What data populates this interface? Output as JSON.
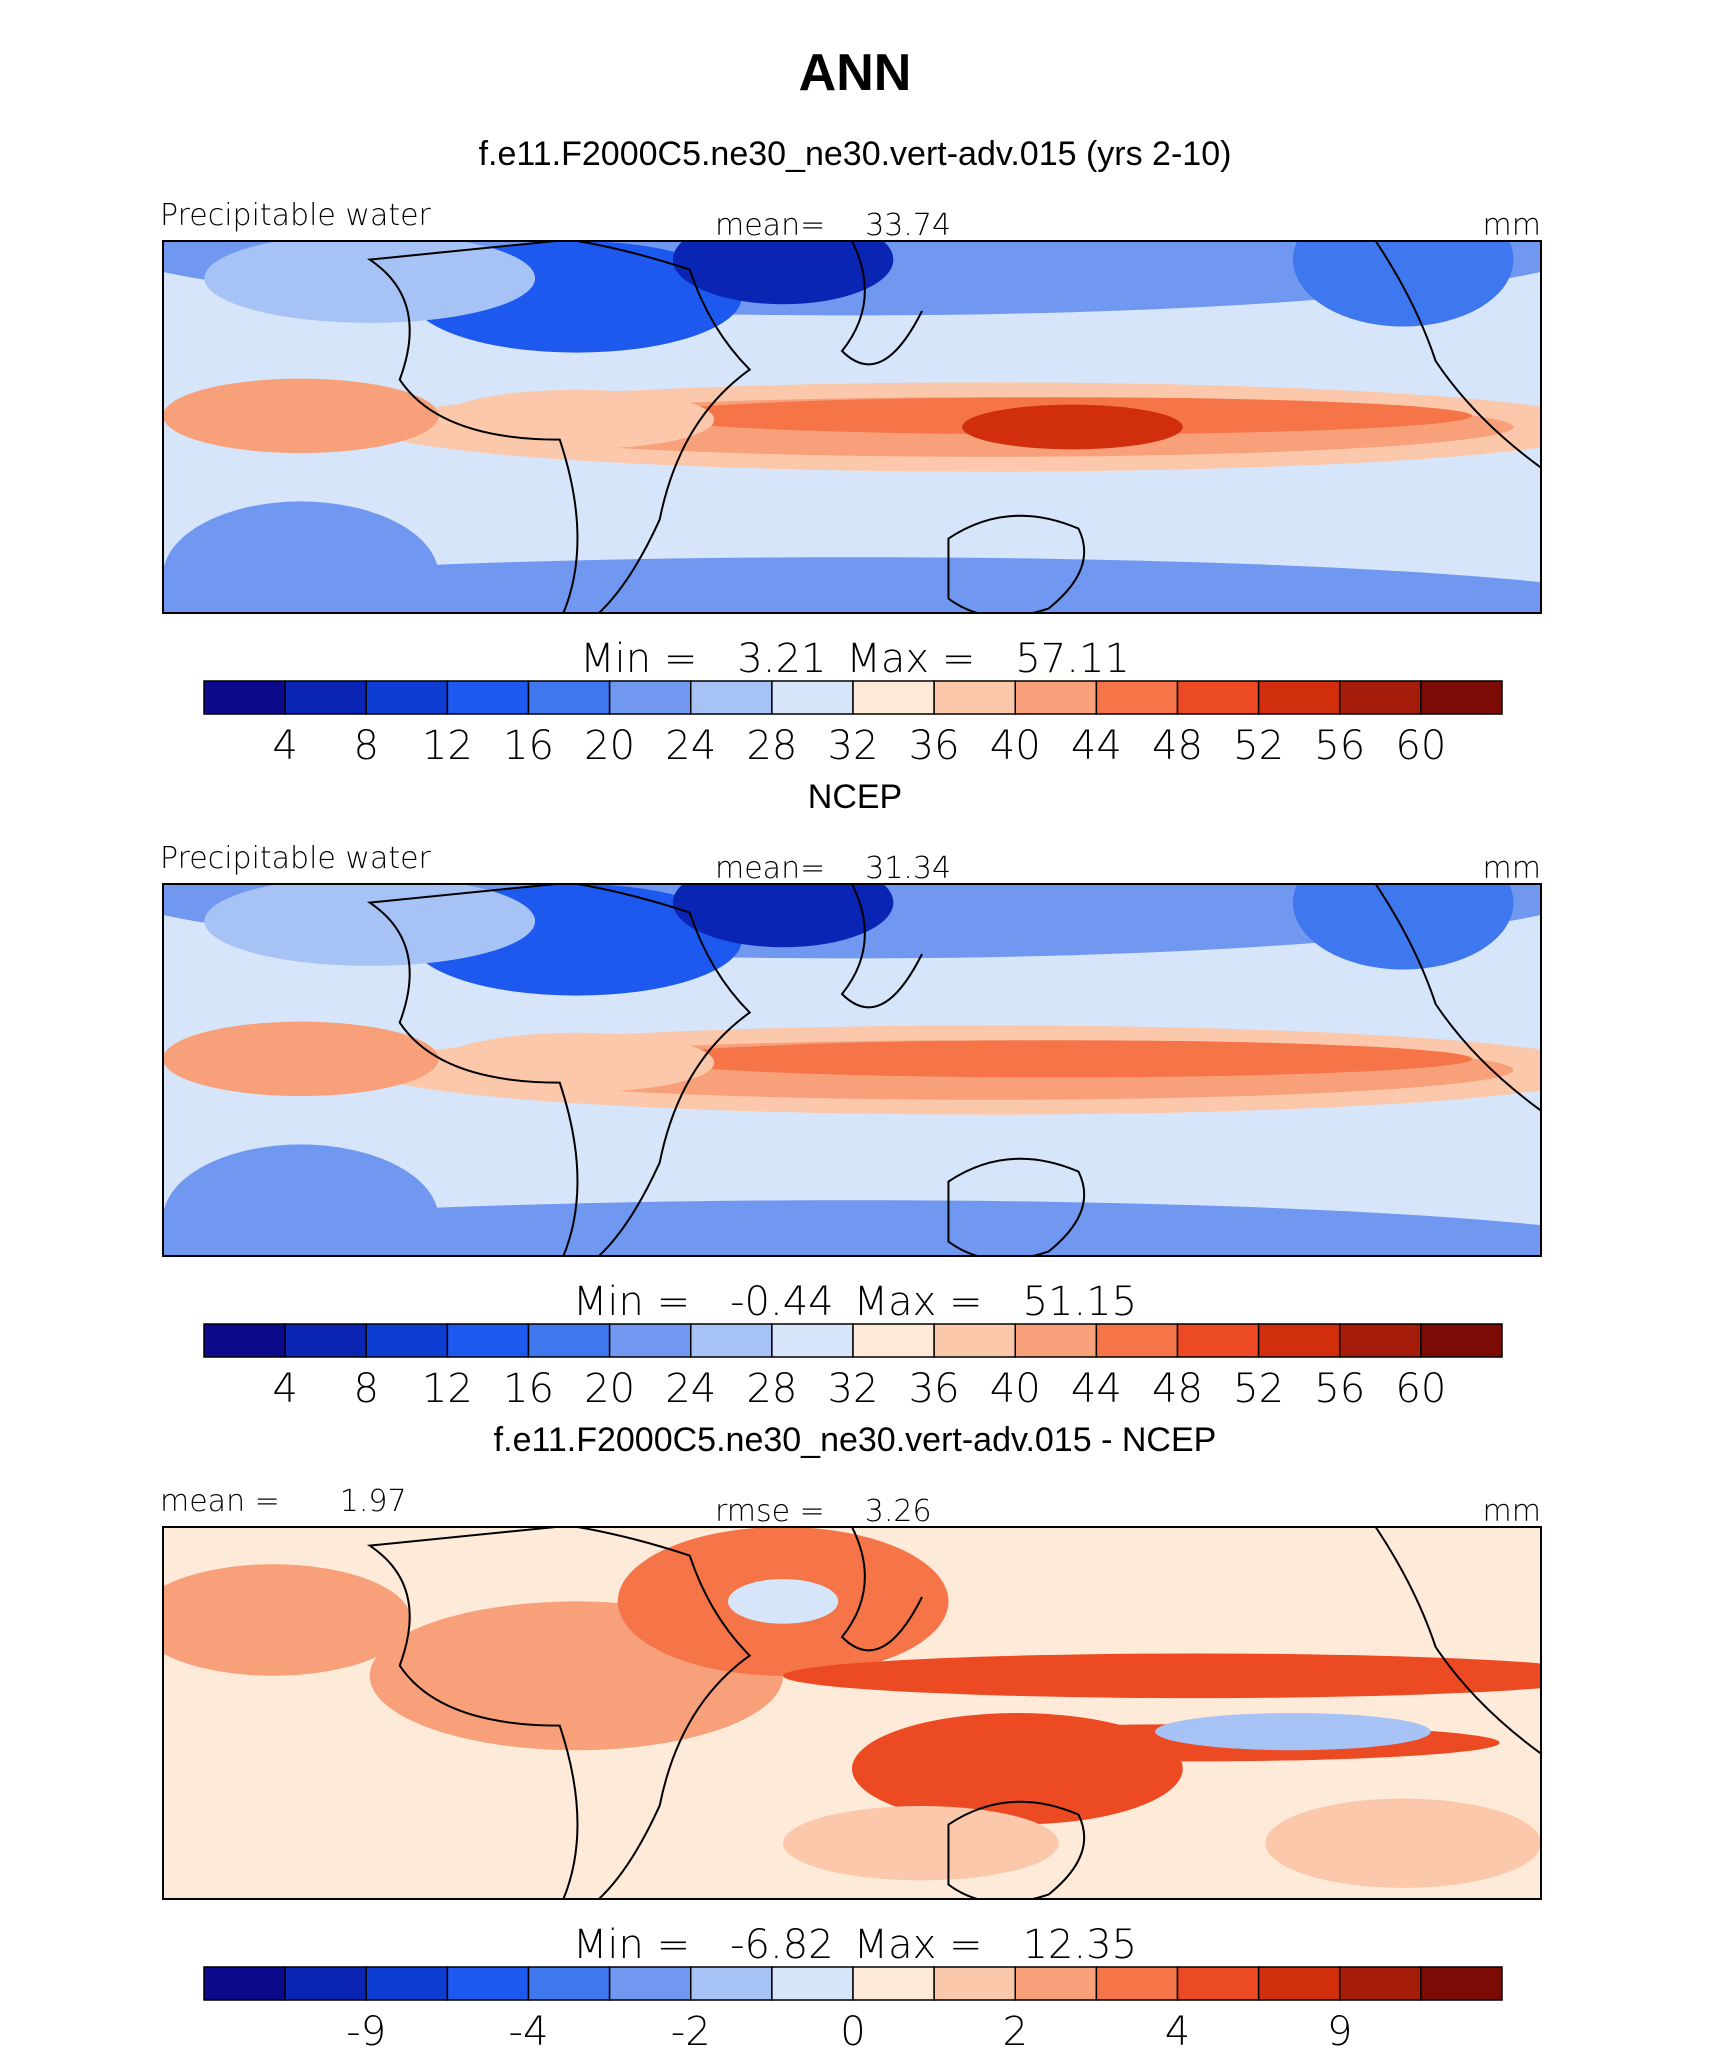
{
  "title": "ANN",
  "colormap": [
    "#0b0a8c",
    "#0a24b3",
    "#0d3dd3",
    "#1d58ef",
    "#3f77ee",
    "#7098f0",
    "#a7c3f5",
    "#d6e5f9",
    "#fdead9",
    "#fbc8ab",
    "#f8a07a",
    "#f57448",
    "#ec4a22",
    "#d12e0e",
    "#a61c0a",
    "#7c0a05"
  ],
  "panels": [
    {
      "title": "f.e11.F2000C5.ne30_ne30.vert-adv.015 (yrs 2-10)",
      "left_label": "Precipitable water",
      "center_label": "mean=",
      "center_value": 33.74,
      "units": "mm",
      "min_label": "Min =",
      "min": 3.21,
      "max_label": "Max =",
      "max": 57.11,
      "colorbar_labels": [
        4,
        8,
        12,
        16,
        20,
        24,
        28,
        32,
        36,
        40,
        44,
        48,
        52,
        56,
        60
      ]
    },
    {
      "title": "NCEP",
      "left_label": "Precipitable water",
      "center_label": "mean=",
      "center_value": 31.34,
      "units": "mm",
      "min_label": "Min =",
      "min": -0.44,
      "max_label": "Max =",
      "max": 51.15,
      "colorbar_labels": [
        4,
        8,
        12,
        16,
        20,
        24,
        28,
        32,
        36,
        40,
        44,
        48,
        52,
        56,
        60
      ]
    },
    {
      "title": "f.e11.F2000C5.ne30_ne30.vert-adv.015 - NCEP",
      "left_label": "mean =",
      "left_value": 1.97,
      "center_label": "rmse =",
      "center_value": 3.26,
      "units": "mm",
      "min_label": "Min =",
      "min": -6.82,
      "max_label": "Max =",
      "max": 12.35,
      "colorbar_labels": [
        null,
        -9,
        null,
        -4,
        null,
        -2,
        null,
        0,
        null,
        2,
        null,
        4,
        null,
        9,
        null
      ]
    }
  ]
}
